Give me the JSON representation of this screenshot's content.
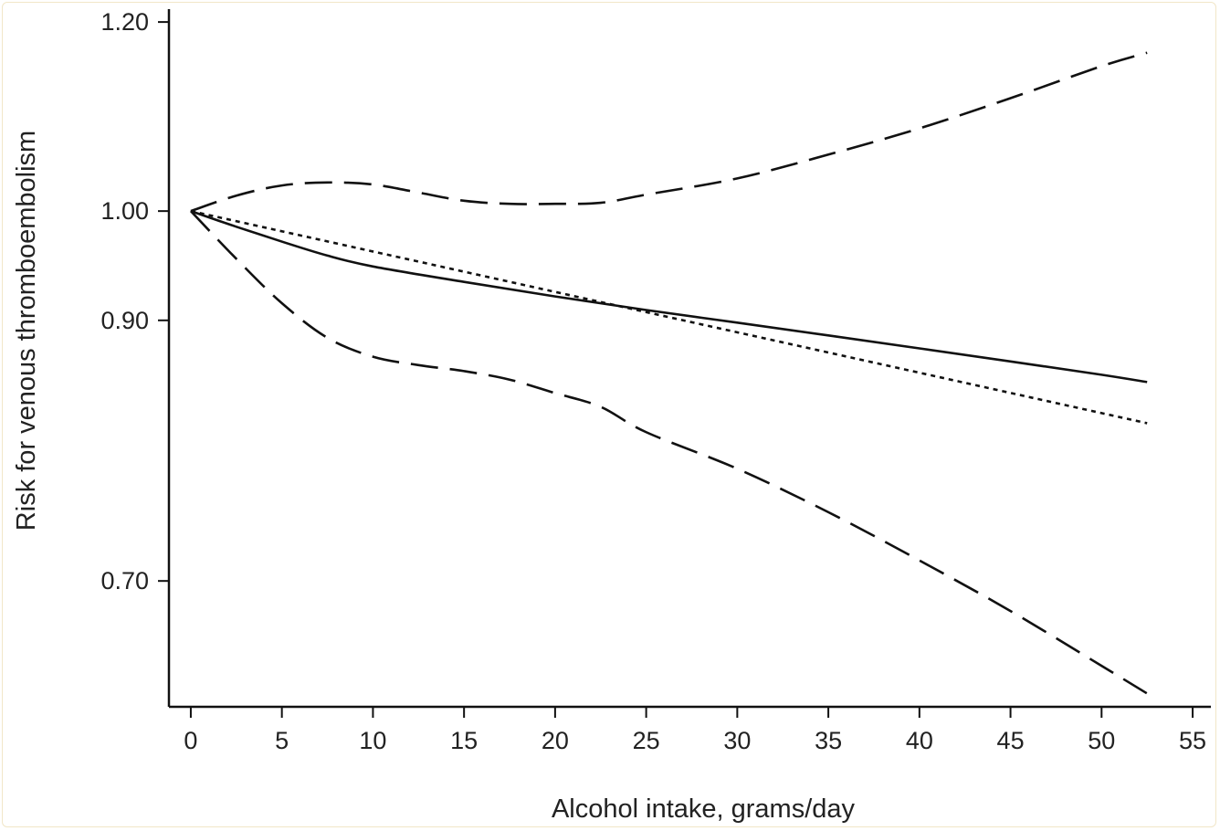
{
  "chart_data": {
    "type": "line",
    "title": "",
    "xlabel": "Alcohol intake, grams/day",
    "ylabel": "Risk for venous thromboembolism",
    "xlim": [
      -1.2,
      56
    ],
    "ylim": [
      0.62,
      1.215
    ],
    "y_scale": "log",
    "x_ticks": [
      0,
      5,
      10,
      15,
      20,
      25,
      30,
      35,
      40,
      45,
      50,
      55
    ],
    "x_tick_labels": [
      "0",
      "5",
      "10",
      "15",
      "20",
      "25",
      "30",
      "35",
      "40",
      "45",
      "50",
      "55"
    ],
    "y_ticks": [
      0.7,
      0.9,
      1.0,
      1.2
    ],
    "y_tick_labels": [
      "0.70",
      "0.90",
      "1.00",
      "1.20"
    ],
    "grid": false,
    "series": [
      {
        "style": "solid",
        "x": [
          0,
          2.5,
          5,
          7.5,
          10,
          15,
          20,
          25,
          30,
          35,
          40,
          45,
          50,
          52.5
        ],
        "y": [
          1.0,
          0.985,
          0.971,
          0.958,
          0.948,
          0.934,
          0.921,
          0.909,
          0.898,
          0.887,
          0.876,
          0.865,
          0.854,
          0.848
        ]
      },
      {
        "style": "dotted",
        "x": [
          0,
          52.5
        ],
        "y": [
          1.0,
          0.815
        ]
      },
      {
        "style": "dashed",
        "x": [
          0,
          2.5,
          5,
          7.5,
          10,
          12.5,
          15,
          17.5,
          20,
          22.5,
          25,
          30,
          35,
          40,
          45,
          50,
          52.5
        ],
        "y": [
          1.0,
          1.015,
          1.025,
          1.028,
          1.026,
          1.018,
          1.01,
          1.007,
          1.007,
          1.008,
          1.016,
          1.032,
          1.056,
          1.083,
          1.115,
          1.15,
          1.165
        ]
      },
      {
        "style": "dashed",
        "x": [
          0,
          2.5,
          5,
          7.5,
          10,
          12.5,
          15,
          17.5,
          20,
          22.5,
          25,
          30,
          35,
          40,
          45,
          50,
          52.5
        ],
        "y": [
          1.0,
          0.955,
          0.915,
          0.885,
          0.869,
          0.862,
          0.857,
          0.85,
          0.839,
          0.828,
          0.808,
          0.78,
          0.748,
          0.714,
          0.68,
          0.645,
          0.628
        ]
      }
    ]
  }
}
